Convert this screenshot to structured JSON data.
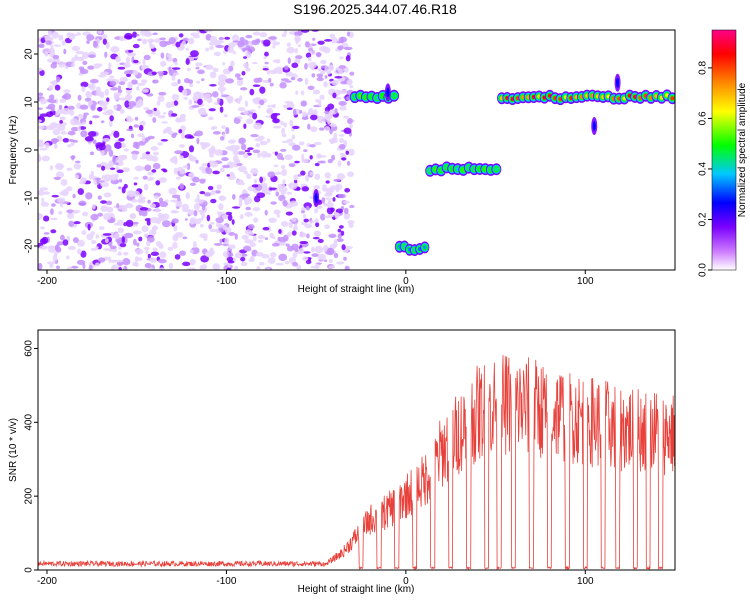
{
  "title": "S196.2025.344.07.46.R18",
  "chart_data": [
    {
      "type": "heatmap",
      "xlabel": "Height of straight line (km)",
      "ylabel": "Frequency (Hz)",
      "xlim": [
        -205,
        150
      ],
      "ylim": [
        -25,
        25
      ],
      "xticks": [
        -200,
        -100,
        0,
        100
      ],
      "xtick_labels": [
        "-200",
        "-100",
        "0",
        "100"
      ],
      "yticks": [
        -20,
        -10,
        0,
        10,
        20
      ],
      "ytick_labels": [
        "-20",
        "-10",
        "0",
        "10",
        "20"
      ],
      "colorbar": {
        "label": "Normalized spectral amplitude",
        "range": [
          0,
          0.95
        ],
        "ticks": [
          0.0,
          0.2,
          0.4,
          0.6,
          0.8
        ],
        "tick_labels": [
          "0.0",
          "0.2",
          "0.4",
          "0.6",
          "0.8"
        ],
        "colors": [
          "#ffffff",
          "#cc77ff",
          "#7a00ff",
          "#0000ff",
          "#00c8ff",
          "#00ff00",
          "#ffff00",
          "#ff8800",
          "#ff0000",
          "#ff0088"
        ]
      },
      "noise_region_x": [
        -205,
        -30
      ],
      "segments": [
        {
          "x": [
            -30,
            -5
          ],
          "freq": 11,
          "amp": 0.55
        },
        {
          "x": [
            -5,
            12
          ],
          "freq": -20.5,
          "amp": 0.4
        },
        {
          "x": [
            12,
            52
          ],
          "freq": -4,
          "amp": 0.5
        },
        {
          "x": [
            52,
            150
          ],
          "freq": 11,
          "amp": 0.85
        }
      ],
      "streaks": [
        {
          "x": -50,
          "freq": -10
        },
        {
          "x": -10,
          "freq": 12
        },
        {
          "x": 105,
          "freq": 5
        },
        {
          "x": 118,
          "freq": 14
        }
      ]
    },
    {
      "type": "line",
      "xlabel": "Height of straight line (km)",
      "ylabel": "SNR (10 * v/v)",
      "xlim": [
        -205,
        150
      ],
      "ylim": [
        0,
        650
      ],
      "xticks": [
        -200,
        -100,
        0,
        100
      ],
      "xtick_labels": [
        "-200",
        "-100",
        "0",
        "100"
      ],
      "yticks": [
        0,
        200,
        400,
        600
      ],
      "ytick_labels": [
        "0",
        "200",
        "400",
        "600"
      ],
      "color": "#e8403a",
      "envelope": {
        "x": [
          -205,
          -45,
          -35,
          -20,
          -10,
          0,
          10,
          20,
          30,
          40,
          50,
          60,
          80,
          100,
          120,
          140,
          150
        ],
        "y": [
          18,
          18,
          60,
          170,
          200,
          250,
          300,
          400,
          470,
          530,
          560,
          560,
          540,
          510,
          480,
          470,
          460
        ]
      },
      "dropouts_x": [
        -25,
        -15,
        -5,
        5,
        15,
        25,
        35,
        45,
        52,
        60,
        70,
        80,
        90,
        100,
        110,
        118,
        128,
        135,
        142
      ]
    }
  ]
}
